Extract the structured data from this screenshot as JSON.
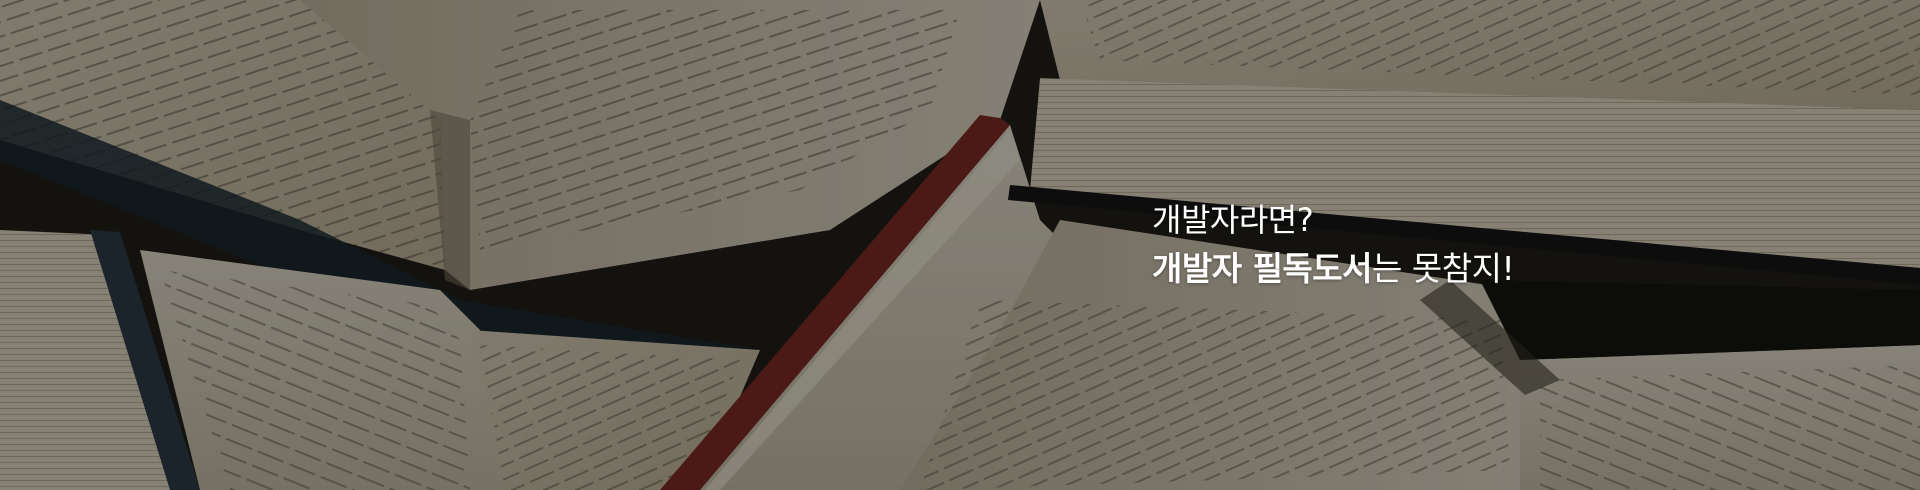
{
  "banner": {
    "headline": "개발자라면?",
    "subline_bold": "개발자 필독도서",
    "subline_rest": "는 못참지!",
    "image_description_icon": "open-books-photo",
    "text_color": "#ffffff"
  }
}
